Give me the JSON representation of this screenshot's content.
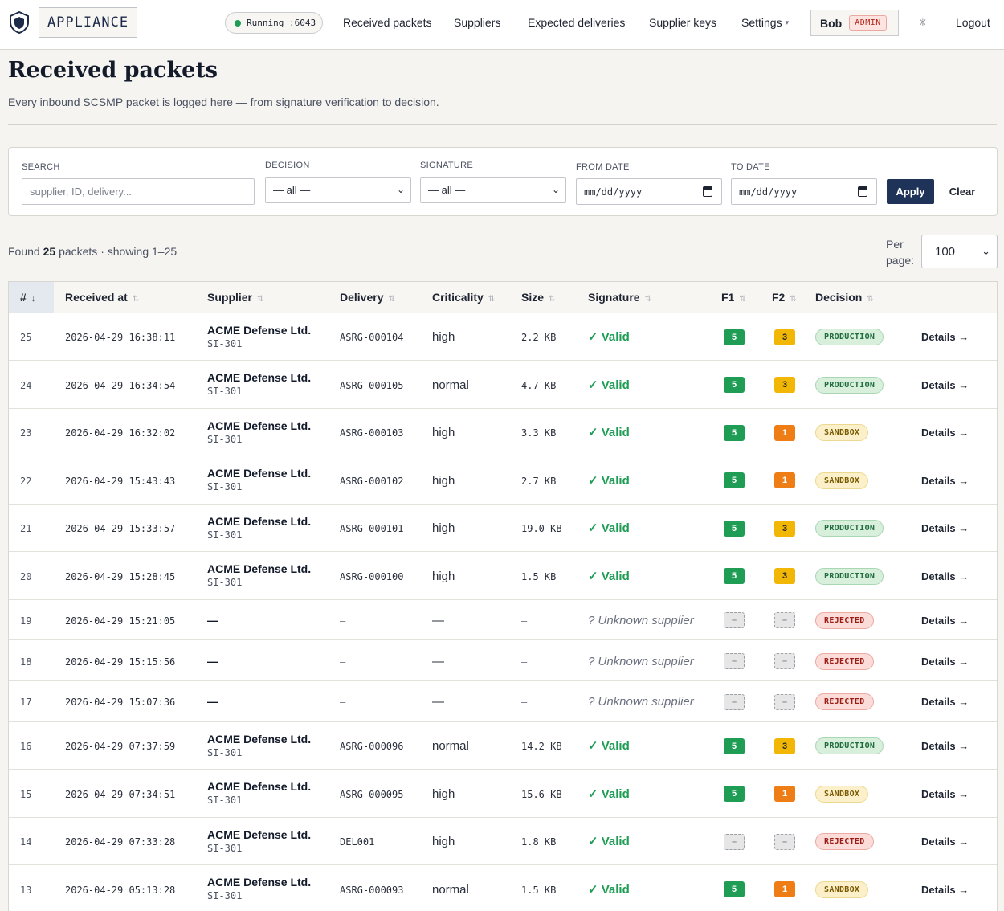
{
  "header": {
    "app_name": "APPLIANCE",
    "status": "Running :6043",
    "nav": [
      "Received packets",
      "Suppliers",
      "Expected deliveries",
      "Supplier keys",
      "Settings"
    ],
    "user": "Bob",
    "role": "ADMIN",
    "theme_icon": "☼",
    "logout": "Logout"
  },
  "page": {
    "title": "Received packets",
    "subtitle": "Every inbound SCSMP packet is logged here — from signature verification to decision."
  },
  "filters": {
    "search_label": "SEARCH",
    "search_placeholder": "supplier, ID, delivery...",
    "decision_label": "DECISION",
    "decision_value": "— all —",
    "signature_label": "SIGNATURE",
    "signature_value": "— all —",
    "from_label": "FROM DATE",
    "from_value": "mm/dd/yyyy",
    "to_label": "TO DATE",
    "to_value": "mm/dd/yyyy",
    "apply": "Apply",
    "clear": "Clear"
  },
  "summary": {
    "found_prefix": "Found",
    "found_count": "25",
    "found_suffix": "packets · showing 1–25",
    "per_page_label": "Per page:",
    "per_page_value": "100"
  },
  "table": {
    "headers": [
      "#",
      "Received at",
      "Supplier",
      "Delivery",
      "Criticality",
      "Size",
      "Signature",
      "F1",
      "F2",
      "Decision",
      ""
    ],
    "sort_icon": "⇅",
    "sorted_icon": "↓",
    "details_label": "Details →",
    "rows": [
      {
        "id": "25",
        "received": "2026-04-29 16:38:11",
        "supplier": "ACME Defense Ltd.",
        "supplier_id": "SI-301",
        "delivery": "ASRG-000104",
        "criticality": "high",
        "size": "2.2 KB",
        "signature": "✓ Valid",
        "f1": "5",
        "f2": "3",
        "decision": "PRODUCTION"
      },
      {
        "id": "24",
        "received": "2026-04-29 16:34:54",
        "supplier": "ACME Defense Ltd.",
        "supplier_id": "SI-301",
        "delivery": "ASRG-000105",
        "criticality": "normal",
        "size": "4.7 KB",
        "signature": "✓ Valid",
        "f1": "5",
        "f2": "3",
        "decision": "PRODUCTION"
      },
      {
        "id": "23",
        "received": "2026-04-29 16:32:02",
        "supplier": "ACME Defense Ltd.",
        "supplier_id": "SI-301",
        "delivery": "ASRG-000103",
        "criticality": "high",
        "size": "3.3 KB",
        "signature": "✓ Valid",
        "f1": "5",
        "f2": "1",
        "decision": "SANDBOX"
      },
      {
        "id": "22",
        "received": "2026-04-29 15:43:43",
        "supplier": "ACME Defense Ltd.",
        "supplier_id": "SI-301",
        "delivery": "ASRG-000102",
        "criticality": "high",
        "size": "2.7 KB",
        "signature": "✓ Valid",
        "f1": "5",
        "f2": "1",
        "decision": "SANDBOX"
      },
      {
        "id": "21",
        "received": "2026-04-29 15:33:57",
        "supplier": "ACME Defense Ltd.",
        "supplier_id": "SI-301",
        "delivery": "ASRG-000101",
        "criticality": "high",
        "size": "19.0 KB",
        "signature": "✓ Valid",
        "f1": "5",
        "f2": "3",
        "decision": "PRODUCTION"
      },
      {
        "id": "20",
        "received": "2026-04-29 15:28:45",
        "supplier": "ACME Defense Ltd.",
        "supplier_id": "SI-301",
        "delivery": "ASRG-000100",
        "criticality": "high",
        "size": "1.5 KB",
        "signature": "✓ Valid",
        "f1": "5",
        "f2": "3",
        "decision": "PRODUCTION"
      },
      {
        "id": "19",
        "received": "2026-04-29 15:21:05",
        "supplier": "—",
        "supplier_id": "",
        "delivery": "–",
        "criticality": "—",
        "size": "–",
        "signature": "? Unknown supplier",
        "f1": "–",
        "f2": "–",
        "decision": "REJECTED"
      },
      {
        "id": "18",
        "received": "2026-04-29 15:15:56",
        "supplier": "—",
        "supplier_id": "",
        "delivery": "–",
        "criticality": "—",
        "size": "–",
        "signature": "? Unknown supplier",
        "f1": "–",
        "f2": "–",
        "decision": "REJECTED"
      },
      {
        "id": "17",
        "received": "2026-04-29 15:07:36",
        "supplier": "—",
        "supplier_id": "",
        "delivery": "–",
        "criticality": "—",
        "size": "–",
        "signature": "? Unknown supplier",
        "f1": "–",
        "f2": "–",
        "decision": "REJECTED"
      },
      {
        "id": "16",
        "received": "2026-04-29 07:37:59",
        "supplier": "ACME Defense Ltd.",
        "supplier_id": "SI-301",
        "delivery": "ASRG-000096",
        "criticality": "normal",
        "size": "14.2 KB",
        "signature": "✓ Valid",
        "f1": "5",
        "f2": "3",
        "decision": "PRODUCTION"
      },
      {
        "id": "15",
        "received": "2026-04-29 07:34:51",
        "supplier": "ACME Defense Ltd.",
        "supplier_id": "SI-301",
        "delivery": "ASRG-000095",
        "criticality": "high",
        "size": "15.6 KB",
        "signature": "✓ Valid",
        "f1": "5",
        "f2": "1",
        "decision": "SANDBOX"
      },
      {
        "id": "14",
        "received": "2026-04-29 07:33:28",
        "supplier": "ACME Defense Ltd.",
        "supplier_id": "SI-301",
        "delivery": "DEL001",
        "criticality": "high",
        "size": "1.8 KB",
        "signature": "✓ Valid",
        "f1": "–",
        "f2": "–",
        "decision": "REJECTED"
      },
      {
        "id": "13",
        "received": "2026-04-29 05:13:28",
        "supplier": "ACME Defense Ltd.",
        "supplier_id": "SI-301",
        "delivery": "ASRG-000093",
        "criticality": "normal",
        "size": "1.5 KB",
        "signature": "✓ Valid",
        "f1": "5",
        "f2": "1",
        "decision": "SANDBOX"
      }
    ]
  },
  "colors": {
    "accent": "#1f3358",
    "valid": "#1f9d55",
    "score_green": "#1f9d55",
    "score_yellow": "#f2b705",
    "score_orange": "#ef7d16"
  }
}
